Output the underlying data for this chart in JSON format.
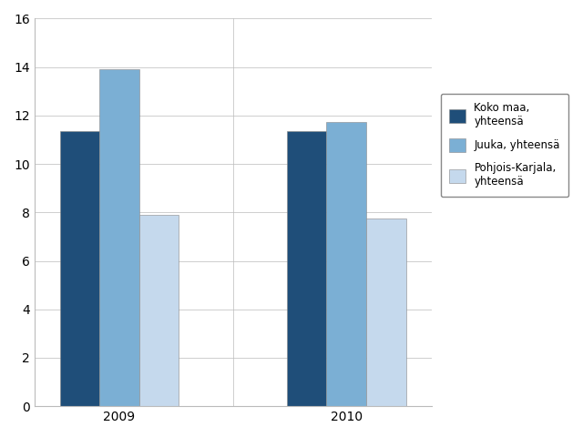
{
  "categories": [
    "2009",
    "2010"
  ],
  "series": [
    {
      "label": "Koko maa,\nyhteensä",
      "values": [
        11.35,
        11.35
      ],
      "color": "#1f4e79"
    },
    {
      "label": "Juuka, yhteensä",
      "values": [
        13.9,
        11.75
      ],
      "color": "#7bafd4"
    },
    {
      "label": "Pohjois-Karjala,\nyhteensä",
      "values": [
        7.9,
        7.75
      ],
      "color": "#c5d9ed"
    }
  ],
  "ylim": [
    0,
    16
  ],
  "yticks": [
    0,
    2,
    4,
    6,
    8,
    10,
    12,
    14,
    16
  ],
  "bar_width": 0.28,
  "background_color": "#ffffff",
  "grid_color": "#bbbbbb",
  "legend_fontsize": 8.5,
  "tick_fontsize": 10
}
